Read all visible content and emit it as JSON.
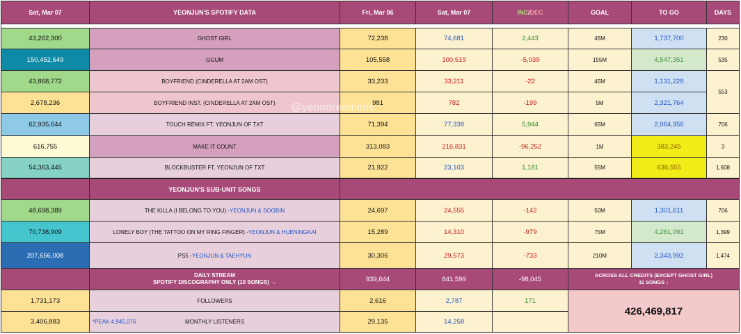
{
  "header": {
    "date1": "Sat, Mar 07",
    "title": "YEONJUN'S SPOTIFY DATA",
    "prev_day": "Fri, Mar 06",
    "cur_day": "Sat, Mar 07",
    "inc": "INC",
    "slash": "/",
    "dec": "DEC",
    "goal": "GOAL",
    "togo": "TO GO",
    "days": "DAYS"
  },
  "songs": [
    {
      "total": "43,262,300",
      "title": "GHOST GIRL",
      "prev": "72,238",
      "cur": "74,681",
      "diff": "2,443",
      "goal": "45M",
      "togo": "1,737,700",
      "days": "230"
    },
    {
      "total": "150,452,649",
      "title": "GGUM",
      "prev": "105,558",
      "cur": "100,519",
      "diff": "-5,039",
      "goal": "155M",
      "togo": "4,547,351",
      "days": "535"
    },
    {
      "total": "43,868,772",
      "title": "BOYFRIEND (CINDERELLA AT 2AM OST)",
      "prev": "33,233",
      "cur": "33,211",
      "diff": "-22",
      "goal": "45M",
      "togo": "1,131,228",
      "days": "553"
    },
    {
      "total": "2,678,236",
      "title": "BOYFRIEND INST. (CINDERELLA AT 2AM OST)",
      "prev": "981",
      "cur": "782",
      "diff": "-199",
      "goal": "5M",
      "togo": "2,321,764"
    },
    {
      "total": "62,935,644",
      "title": "TOUCH REMIX FT. YEONJUN OF TXT",
      "prev": "71,394",
      "cur": "77,338",
      "diff": "5,944",
      "goal": "65M",
      "togo": "2,064,356",
      "days": "706"
    },
    {
      "total": "616,755",
      "title": "MAKE IT COUNT",
      "prev": "313,083",
      "cur": "216,831",
      "diff": "-96,252",
      "goal": "1M",
      "togo": "383,245",
      "days": "3"
    },
    {
      "total": "54,363,445",
      "title": "BLOCKBUSTER FT. YEONJUN OF TXT",
      "prev": "21,922",
      "cur": "23,103",
      "diff": "1,181",
      "goal": "55M",
      "togo": "636,555",
      "days": "1,608"
    }
  ],
  "subunit_header": "YEONJUN'S SUB-UNIT SONGS",
  "subunit": [
    {
      "total": "48,698,389",
      "title": "THE KILLA (I BELONG TO YOU) - ",
      "feat": "YEONJUN & SOOBIN",
      "prev": "24,697",
      "cur": "24,555",
      "diff": "-142",
      "goal": "50M",
      "togo": "1,301,611",
      "days": "706"
    },
    {
      "total": "70,738,909",
      "title": "LONELY BOY (THE TATTOO ON MY RING FINGER) - ",
      "feat": "YEONJUN & HUENINGKAI",
      "prev": "15,289",
      "cur": "14,310",
      "diff": "-979",
      "goal": "75M",
      "togo": "4,261,091",
      "days": "1,399"
    },
    {
      "total": "207,656,008",
      "title": "PS5 - ",
      "feat": "YEONJUN & TAEHYUN",
      "prev": "30,306",
      "cur": "29,573",
      "diff": "-733",
      "goal": "210M",
      "togo": "2,343,992",
      "days": "1,474"
    }
  ],
  "daily": {
    "label1": "DAILY STREAM",
    "label2": "SPOTIFY DISCOGRAPHY ONLY (10 SONGS) →",
    "prev": "939,644",
    "cur": "841,599",
    "diff": "-98,045",
    "across1": "ACROSS ALL CREDITS (EXCEPT GHOST GIRL)",
    "across2": "11 SONGS ↓",
    "across_total": "426,469,817"
  },
  "followers": {
    "total": "1,731,173",
    "label": "FOLLOWERS",
    "prev": "2,616",
    "cur": "2,787",
    "diff": "171"
  },
  "listeners": {
    "total": "3,406,883",
    "peak": "*PEAK 4,945,076",
    "label": "MONTHLY LISTENERS",
    "prev": "29,135",
    "cur": "14,258"
  },
  "watermark": "@yeondreaminfo",
  "colors": {
    "header": "#a84a78",
    "goal_met": "#f2ec19"
  }
}
